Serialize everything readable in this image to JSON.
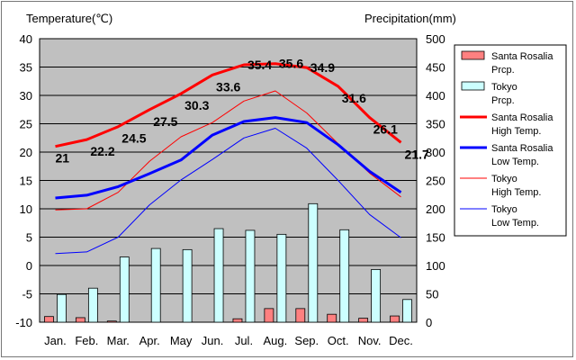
{
  "chart_data": {
    "type": "bar+line",
    "left_axis_title": "Temperature(℃)",
    "right_axis_title": "Precipitation(mm)",
    "categories": [
      "Jan.",
      "Feb.",
      "Mar.",
      "Apr.",
      "May",
      "Jun.",
      "Jul.",
      "Aug.",
      "Sep.",
      "Oct.",
      "Nov.",
      "Dec."
    ],
    "left_ylim": [
      -10,
      40
    ],
    "left_ticks": [
      "-10",
      "-5",
      "0",
      "5",
      "10",
      "15",
      "20",
      "25",
      "30",
      "35",
      "40"
    ],
    "right_ylim": [
      0,
      500
    ],
    "right_ticks": [
      "0",
      "50",
      "100",
      "150",
      "200",
      "250",
      "300",
      "350",
      "400",
      "450",
      "500"
    ],
    "grid": true,
    "legend_position": "right",
    "bar_series": [
      {
        "name": "Santa Rosalia\nPrcp.",
        "color": "#ff8080",
        "values": [
          10,
          8,
          2,
          0,
          0,
          0,
          6,
          24,
          24,
          14,
          7,
          11
        ]
      },
      {
        "name": "Tokyo\nPrcp.",
        "color": "#ccffff",
        "values": [
          49,
          60,
          115,
          130,
          128,
          165,
          162,
          155,
          209,
          163,
          93,
          40
        ]
      }
    ],
    "line_series": [
      {
        "name": "Santa Rosalia\nHigh Temp.",
        "color": "#ff0000",
        "width": 3,
        "values": [
          21,
          22.2,
          24.5,
          27.5,
          30.3,
          33.6,
          35.4,
          35.6,
          34.9,
          31.6,
          26.1,
          21.7
        ],
        "labels": [
          "21",
          "22.2",
          "24.5",
          "27.5",
          "30.3",
          "33.6",
          "35.4",
          "35.6",
          "34.9",
          "31.6",
          "26.1",
          "21.7"
        ]
      },
      {
        "name": "Santa Rosalia\nLow Temp.",
        "color": "#0000ff",
        "width": 3,
        "values": [
          11.9,
          12.4,
          13.9,
          16.2,
          18.6,
          23,
          25.4,
          26.1,
          25.2,
          21.3,
          16.6,
          12.9
        ]
      },
      {
        "name": "Tokyo\nHigh Temp.",
        "color": "#ff0000",
        "width": 1,
        "values": [
          9.8,
          10,
          12.9,
          18.4,
          22.7,
          25.2,
          29,
          30.8,
          26.9,
          21.5,
          16.3,
          12.1
        ]
      },
      {
        "name": "Tokyo\nLow Temp.",
        "color": "#0000ff",
        "width": 1,
        "values": [
          2.1,
          2.4,
          5,
          10.7,
          15.1,
          18.7,
          22.5,
          24.2,
          20.7,
          15,
          9,
          4.9
        ]
      }
    ],
    "colors": {
      "plot_bg": "#c0c0c0",
      "gridline": "#000000"
    }
  }
}
